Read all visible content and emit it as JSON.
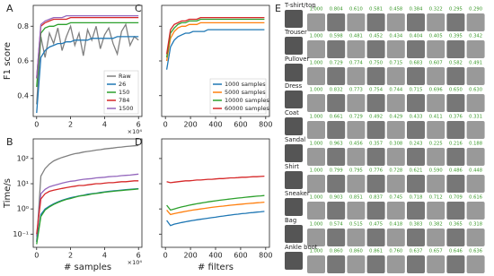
{
  "chart_data": [
    {
      "type": "line",
      "label": "A",
      "y_label": "F1 score",
      "x_offset_label": "×10⁴",
      "legend": "lower right",
      "x": [
        0,
        2500,
        5000,
        7500,
        10000,
        12500,
        15000,
        17500,
        20000,
        22500,
        25000,
        27500,
        30000,
        32500,
        35000,
        37500,
        40000,
        42500,
        45000,
        47500,
        50000,
        52500,
        55000,
        57500,
        60000
      ],
      "xlim": [
        -2000,
        62000
      ],
      "xticks": [
        {
          "value": 0,
          "label": "0"
        },
        {
          "value": 20000,
          "label": "2"
        },
        {
          "value": 40000,
          "label": "4"
        },
        {
          "value": 60000,
          "label": "6"
        }
      ],
      "ylim": [
        0.28,
        0.92
      ],
      "yticks": [
        0.4,
        0.6,
        0.8
      ],
      "series": [
        {
          "name": "Raw",
          "color": "#808080",
          "values": [
            0.35,
            0.74,
            0.62,
            0.76,
            0.7,
            0.79,
            0.66,
            0.74,
            0.8,
            0.69,
            0.76,
            0.63,
            0.78,
            0.72,
            0.8,
            0.67,
            0.75,
            0.79,
            0.7,
            0.64,
            0.77,
            0.81,
            0.69,
            0.74,
            0.72
          ]
        },
        {
          "name": "26",
          "color": "#1f77b4",
          "values": [
            0.3,
            0.62,
            0.66,
            0.68,
            0.69,
            0.7,
            0.7,
            0.71,
            0.71,
            0.72,
            0.72,
            0.72,
            0.72,
            0.73,
            0.73,
            0.73,
            0.73,
            0.73,
            0.73,
            0.74,
            0.74,
            0.74,
            0.74,
            0.74,
            0.74
          ]
        },
        {
          "name": "150",
          "color": "#2ca02c",
          "values": [
            0.45,
            0.76,
            0.79,
            0.8,
            0.8,
            0.81,
            0.81,
            0.81,
            0.82,
            0.82,
            0.82,
            0.82,
            0.82,
            0.82,
            0.82,
            0.82,
            0.82,
            0.82,
            0.82,
            0.82,
            0.82,
            0.82,
            0.82,
            0.82,
            0.82
          ]
        },
        {
          "name": "784",
          "color": "#d62728",
          "values": [
            0.5,
            0.8,
            0.82,
            0.83,
            0.84,
            0.84,
            0.84,
            0.84,
            0.85,
            0.85,
            0.85,
            0.85,
            0.85,
            0.85,
            0.85,
            0.85,
            0.85,
            0.85,
            0.85,
            0.85,
            0.85,
            0.85,
            0.85,
            0.85,
            0.85
          ]
        },
        {
          "name": "1500",
          "color": "#9467bd",
          "values": [
            0.5,
            0.81,
            0.83,
            0.84,
            0.85,
            0.85,
            0.85,
            0.86,
            0.86,
            0.86,
            0.86,
            0.86,
            0.86,
            0.86,
            0.86,
            0.86,
            0.86,
            0.86,
            0.86,
            0.86,
            0.86,
            0.86,
            0.86,
            0.86,
            0.86
          ]
        }
      ]
    },
    {
      "type": "line",
      "label": "B",
      "y_label": "Time/s",
      "x_label": "# samples",
      "x_offset_label": "×10⁴",
      "log_y": true,
      "x": [
        0,
        2500,
        5000,
        7500,
        10000,
        12500,
        15000,
        17500,
        20000,
        22500,
        25000,
        27500,
        30000,
        32500,
        35000,
        37500,
        40000,
        42500,
        45000,
        47500,
        50000,
        52500,
        55000,
        57500,
        60000
      ],
      "xlim": [
        -2000,
        62000
      ],
      "xticks": [
        {
          "value": 0,
          "label": "0"
        },
        {
          "value": 20000,
          "label": "2"
        },
        {
          "value": 40000,
          "label": "4"
        },
        {
          "value": 60000,
          "label": "6"
        }
      ],
      "ylim": [
        0.03,
        600
      ],
      "yticks": [
        {
          "value": 0.1,
          "label": "10⁻¹"
        },
        {
          "value": 1,
          "label": "10⁰"
        },
        {
          "value": 10,
          "label": "10¹"
        },
        {
          "value": 100,
          "label": "10²"
        }
      ],
      "series": [
        {
          "color": "#808080",
          "values": [
            0.05,
            20,
            40,
            60,
            80,
            95,
            110,
            125,
            140,
            155,
            165,
            180,
            190,
            200,
            215,
            225,
            240,
            250,
            260,
            275,
            285,
            300,
            310,
            320,
            330
          ]
        },
        {
          "color": "#9467bd",
          "values": [
            0.08,
            4,
            6,
            7.5,
            8.5,
            9.5,
            10.5,
            11.5,
            12.5,
            13,
            14,
            15,
            15.5,
            16,
            17,
            17.5,
            18,
            19,
            19.5,
            20,
            21,
            21.5,
            22,
            23,
            24
          ]
        },
        {
          "color": "#d62728",
          "values": [
            0.1,
            2.5,
            4,
            5,
            5.5,
            6,
            6.5,
            7,
            7.5,
            8,
            8.5,
            8.5,
            9,
            9.5,
            10,
            10,
            10.5,
            11,
            11,
            11.5,
            12,
            12,
            12.5,
            13,
            13
          ]
        },
        {
          "color": "#1f77b4",
          "values": [
            0.05,
            0.6,
            1.0,
            1.3,
            1.6,
            1.9,
            2.2,
            2.5,
            2.8,
            3.0,
            3.3,
            3.5,
            3.8,
            4.0,
            4.2,
            4.5,
            4.7,
            5.0,
            5.2,
            5.4,
            5.6,
            5.8,
            6.0,
            6.2,
            6.4
          ]
        },
        {
          "color": "#2ca02c",
          "values": [
            0.04,
            0.5,
            0.9,
            1.2,
            1.5,
            1.8,
            2.1,
            2.4,
            2.6,
            2.9,
            3.2,
            3.4,
            3.6,
            3.9,
            4.1,
            4.3,
            4.6,
            4.8,
            5.0,
            5.2,
            5.4,
            5.6,
            5.8,
            6.0,
            6.2
          ]
        }
      ]
    },
    {
      "type": "line",
      "label": "C",
      "legend": "lower right",
      "x": [
        10,
        40,
        70,
        100,
        130,
        160,
        190,
        220,
        250,
        280,
        310,
        340,
        370,
        400,
        430,
        460,
        490,
        520,
        550,
        580,
        610,
        640,
        670,
        700,
        730,
        760,
        790
      ],
      "xlim": [
        -30,
        830
      ],
      "xticks": [
        0,
        200,
        400,
        600,
        800
      ],
      "ylim": [
        0.28,
        0.92
      ],
      "yticks": [
        0.4,
        0.6,
        0.8
      ],
      "series": [
        {
          "name": "1000 samples",
          "color": "#1f77b4",
          "values": [
            0.55,
            0.68,
            0.72,
            0.74,
            0.75,
            0.76,
            0.76,
            0.77,
            0.77,
            0.77,
            0.77,
            0.78,
            0.78,
            0.78,
            0.78,
            0.78,
            0.78,
            0.78,
            0.78,
            0.78,
            0.78,
            0.78,
            0.78,
            0.78,
            0.78,
            0.78,
            0.78
          ]
        },
        {
          "name": "5000 samples",
          "color": "#ff7f0e",
          "values": [
            0.6,
            0.73,
            0.77,
            0.79,
            0.8,
            0.8,
            0.81,
            0.81,
            0.81,
            0.82,
            0.82,
            0.82,
            0.82,
            0.82,
            0.82,
            0.82,
            0.82,
            0.82,
            0.82,
            0.82,
            0.82,
            0.82,
            0.82,
            0.82,
            0.82,
            0.82,
            0.82
          ]
        },
        {
          "name": "10000 samples",
          "color": "#2ca02c",
          "values": [
            0.62,
            0.76,
            0.79,
            0.81,
            0.82,
            0.82,
            0.83,
            0.83,
            0.83,
            0.84,
            0.84,
            0.84,
            0.84,
            0.84,
            0.84,
            0.84,
            0.84,
            0.84,
            0.84,
            0.84,
            0.84,
            0.84,
            0.84,
            0.84,
            0.84,
            0.84,
            0.84
          ]
        },
        {
          "name": "60000 samples",
          "color": "#d62728",
          "values": [
            0.64,
            0.78,
            0.81,
            0.82,
            0.83,
            0.83,
            0.84,
            0.84,
            0.84,
            0.85,
            0.85,
            0.85,
            0.85,
            0.85,
            0.85,
            0.85,
            0.85,
            0.85,
            0.85,
            0.85,
            0.85,
            0.85,
            0.85,
            0.85,
            0.85,
            0.85,
            0.85
          ]
        }
      ]
    },
    {
      "type": "line",
      "label": "D",
      "x_label": "# filters",
      "log_y": true,
      "x": [
        10,
        40,
        70,
        100,
        130,
        160,
        190,
        220,
        250,
        280,
        310,
        340,
        370,
        400,
        430,
        460,
        490,
        520,
        550,
        580,
        610,
        640,
        670,
        700,
        730,
        760,
        790
      ],
      "xlim": [
        -30,
        830
      ],
      "xticks": [
        0,
        200,
        400,
        600,
        800
      ],
      "ylim": [
        0.03,
        600
      ],
      "yticks": [
        0.1,
        1,
        10,
        100
      ],
      "series": [
        {
          "color": "#d62728",
          "values": [
            12,
            11,
            11.5,
            12,
            12.5,
            13,
            13,
            13.5,
            14,
            14,
            14.5,
            15,
            15,
            15.5,
            16,
            16,
            16.5,
            17,
            17,
            17.5,
            18,
            18,
            18.5,
            19,
            19,
            19.5,
            20
          ]
        },
        {
          "color": "#2ca02c",
          "values": [
            1.4,
            0.9,
            1.0,
            1.1,
            1.2,
            1.3,
            1.4,
            1.5,
            1.6,
            1.7,
            1.8,
            1.9,
            2.0,
            2.1,
            2.2,
            2.3,
            2.4,
            2.5,
            2.6,
            2.7,
            2.8,
            2.9,
            3.0,
            3.1,
            3.2,
            3.3,
            3.4
          ]
        },
        {
          "color": "#ff7f0e",
          "values": [
            0.9,
            0.6,
            0.65,
            0.7,
            0.75,
            0.8,
            0.85,
            0.9,
            0.95,
            1.0,
            1.05,
            1.1,
            1.15,
            1.2,
            1.25,
            1.3,
            1.35,
            1.4,
            1.45,
            1.5,
            1.55,
            1.6,
            1.65,
            1.7,
            1.75,
            1.8,
            1.85
          ]
        },
        {
          "color": "#1f77b4",
          "values": [
            0.35,
            0.22,
            0.25,
            0.27,
            0.29,
            0.31,
            0.33,
            0.35,
            0.37,
            0.39,
            0.41,
            0.43,
            0.45,
            0.47,
            0.5,
            0.52,
            0.55,
            0.57,
            0.6,
            0.62,
            0.65,
            0.67,
            0.7,
            0.72,
            0.75,
            0.77,
            0.8
          ]
        }
      ]
    }
  ],
  "similarity_grid": {
    "label": "E",
    "rows": [
      {
        "name": "T-shirt/top",
        "scores": [
          "1.000",
          "0.804",
          "0.610",
          "0.581",
          "0.458",
          "0.384",
          "0.322",
          "0.295",
          "0.290"
        ]
      },
      {
        "name": "Trouser",
        "scores": [
          "1.000",
          "0.598",
          "0.481",
          "0.452",
          "0.434",
          "0.404",
          "0.405",
          "0.395",
          "0.342"
        ]
      },
      {
        "name": "Pullover",
        "scores": [
          "1.000",
          "0.729",
          "0.774",
          "0.750",
          "0.715",
          "0.683",
          "0.607",
          "0.582",
          "0.491"
        ]
      },
      {
        "name": "Dress",
        "scores": [
          "1.000",
          "0.832",
          "0.773",
          "0.754",
          "0.744",
          "0.715",
          "0.696",
          "0.650",
          "0.630"
        ]
      },
      {
        "name": "Coat",
        "scores": [
          "1.000",
          "0.661",
          "0.729",
          "0.492",
          "0.429",
          "0.433",
          "0.411",
          "0.376",
          "0.331"
        ]
      },
      {
        "name": "Sandal",
        "scores": [
          "1.000",
          "0.963",
          "0.456",
          "0.357",
          "0.308",
          "0.243",
          "0.225",
          "0.216",
          "0.188"
        ]
      },
      {
        "name": "Shirt",
        "scores": [
          "1.000",
          "0.799",
          "0.795",
          "0.776",
          "0.728",
          "0.621",
          "0.590",
          "0.486",
          "0.448"
        ]
      },
      {
        "name": "Sneaker",
        "scores": [
          "1.000",
          "0.903",
          "0.851",
          "0.837",
          "0.745",
          "0.718",
          "0.712",
          "0.709",
          "0.616"
        ]
      },
      {
        "name": "Bag",
        "scores": [
          "1.000",
          "0.574",
          "0.515",
          "0.475",
          "0.418",
          "0.383",
          "0.382",
          "0.365",
          "0.318"
        ]
      },
      {
        "name": "Ankle boot",
        "scores": [
          "1.000",
          "0.860",
          "0.860",
          "0.861",
          "0.760",
          "0.637",
          "0.657",
          "0.646",
          "0.636"
        ]
      }
    ]
  }
}
